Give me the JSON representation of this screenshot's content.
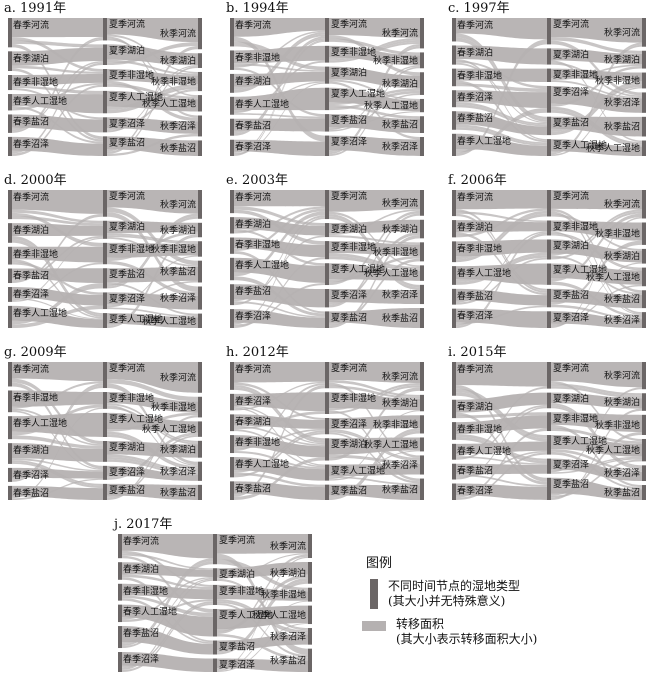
{
  "panels": [
    {
      "title": "a. 1991年",
      "spring": [
        "春季河流",
        "春季湖泊",
        "春季非湿地",
        "春季人工湿地",
        "春季盐沼",
        "春季沼泽"
      ],
      "summer": [
        "夏季河流",
        "夏季湖泊",
        "夏季非湿地",
        "夏季人工湿地",
        "夏季沼泽",
        "夏季盐沼"
      ],
      "autumn": [
        "秋季河流",
        "秋季湖泊",
        "秋季非湿地",
        "秋季人工湿地",
        "秋季沼泽",
        "秋季盐沼"
      ]
    },
    {
      "title": "b. 1994年",
      "spring": [
        "春季河流",
        "春季非湿地",
        "春季湖泊",
        "春季人工湿地",
        "春季盐沼",
        "春季沼泽"
      ],
      "summer": [
        "夏季河流",
        "夏季非湿地",
        "夏季湖泊",
        "夏季人工湿地",
        "夏季盐沼",
        "夏季沼泽"
      ],
      "autumn": [
        "秋季河流",
        "秋季非湿地",
        "秋季湖泊",
        "秋季人工湿地",
        "秋季盐沼",
        "秋季沼泽"
      ]
    },
    {
      "title": "c. 1997年",
      "spring": [
        "春季河流",
        "春季湖泊",
        "春季非湿地",
        "春季沼泽",
        "春季盐沼",
        "春季人工湿地"
      ],
      "summer": [
        "夏季河流",
        "夏季湖泊",
        "夏季非湿地",
        "夏季沼泽",
        "夏季盐沼",
        "夏季人工湿地"
      ],
      "autumn": [
        "秋季河流",
        "秋季湖泊",
        "秋季非湿地",
        "秋季沼泽",
        "秋季盐沼",
        "秋季人工湿地"
      ]
    },
    {
      "title": "d. 2000年",
      "spring": [
        "春季河流",
        "春季湖泊",
        "春季非湿地",
        "春季盐沼",
        "春季沼泽",
        "春季人工湿地"
      ],
      "summer": [
        "夏季河流",
        "夏季湖泊",
        "夏季非湿地",
        "夏季盐沼",
        "夏季沼泽",
        "夏季人工湿地"
      ],
      "autumn": [
        "秋季河流",
        "秋季湖泊",
        "秋季非湿地",
        "秋季盐沼",
        "秋季沼泽",
        "秋季人工湿地"
      ]
    },
    {
      "title": "e. 2003年",
      "spring": [
        "春季河流",
        "春季湖泊",
        "春季非湿地",
        "春季人工湿地",
        "春季盐沼",
        "春季沼泽"
      ],
      "summer": [
        "夏季河流",
        "夏季湖泊",
        "夏季非湿地",
        "夏季人工湿地",
        "夏季沼泽",
        "夏季盐沼"
      ],
      "autumn": [
        "秋季河流",
        "秋季湖泊",
        "秋季非湿地",
        "秋季人工湿地",
        "秋季沼泽",
        "秋季盐沼"
      ]
    },
    {
      "title": "f. 2006年",
      "spring": [
        "春季河流",
        "春季湖泊",
        "春季非湿地",
        "春季人工湿地",
        "春季盐沼",
        "春季沼泽"
      ],
      "summer": [
        "夏季河流",
        "夏季非湿地",
        "夏季湖泊",
        "夏季人工湿地",
        "夏季盐沼",
        "夏季沼泽"
      ],
      "autumn": [
        "秋季河流",
        "秋季非湿地",
        "秋季湖泊",
        "秋季人工湿地",
        "秋季盐沼",
        "秋季沼泽"
      ]
    },
    {
      "title": "g. 2009年",
      "spring": [
        "春季河流",
        "春季非湿地",
        "春季人工湿地",
        "春季湖泊",
        "春季沼泽",
        "春季盐沼"
      ],
      "summer": [
        "夏季河流",
        "夏季非湿地",
        "夏季人工湿地",
        "夏季湖泊",
        "夏季沼泽",
        "夏季盐沼"
      ],
      "autumn": [
        "秋季河流",
        "秋季非湿地",
        "秋季人工湿地",
        "秋季湖泊",
        "秋季沼泽",
        "秋季盐沼"
      ]
    },
    {
      "title": "h. 2012年",
      "spring": [
        "春季河流",
        "春季沼泽",
        "春季湖泊",
        "春季非湿地",
        "春季人工湿地",
        "春季盐沼"
      ],
      "summer": [
        "夏季河流",
        "夏季非湿地",
        "夏季沼泽",
        "夏季湖泊",
        "夏季人工湿地",
        "夏季盐沼"
      ],
      "autumn": [
        "秋季河流",
        "秋季湖泊",
        "秋季非湿地",
        "秋季人工湿地",
        "秋季沼泽",
        "秋季盐沼"
      ]
    },
    {
      "title": "i. 2015年",
      "spring": [
        "春季河流",
        "春季湖泊",
        "春季非湿地",
        "春季人工湿地",
        "春季盐沼",
        "春季沼泽"
      ],
      "summer": [
        "夏季河流",
        "夏季湖泊",
        "夏季非湿地",
        "夏季人工湿地",
        "夏季沼泽",
        "夏季盐沼"
      ],
      "autumn": [
        "秋季河流",
        "秋季湖泊",
        "秋季非湿地",
        "秋季人工湿地",
        "秋季沼泽",
        "秋季盐沼"
      ]
    },
    {
      "title": "j. 2017年",
      "spring": [
        "春季河流",
        "春季湖泊",
        "春季非湿地",
        "春季人工湿地",
        "春季盐沼",
        "春季沼泽"
      ],
      "summer": [
        "夏季河流",
        "夏季湖泊",
        "夏季非湿地",
        "夏季人工湿地",
        "夏季盐沼",
        "夏季沼泽"
      ],
      "autumn": [
        "秋季河流",
        "秋季湖泊",
        "秋季非湿地",
        "秋季人工湿地",
        "秋季沼泽",
        "秋季盐沼"
      ]
    }
  ],
  "legend": {
    "title": "图例",
    "node_line1": "不同时间节点的湿地类型",
    "node_line2": "(其大小并无特殊意义)",
    "flow_line1": "转移面积",
    "flow_line2": "(其大小表示转移面积大小)"
  },
  "colors": {
    "node": "#6b6666",
    "flow": "#b5b1b1",
    "text": "#111111"
  }
}
